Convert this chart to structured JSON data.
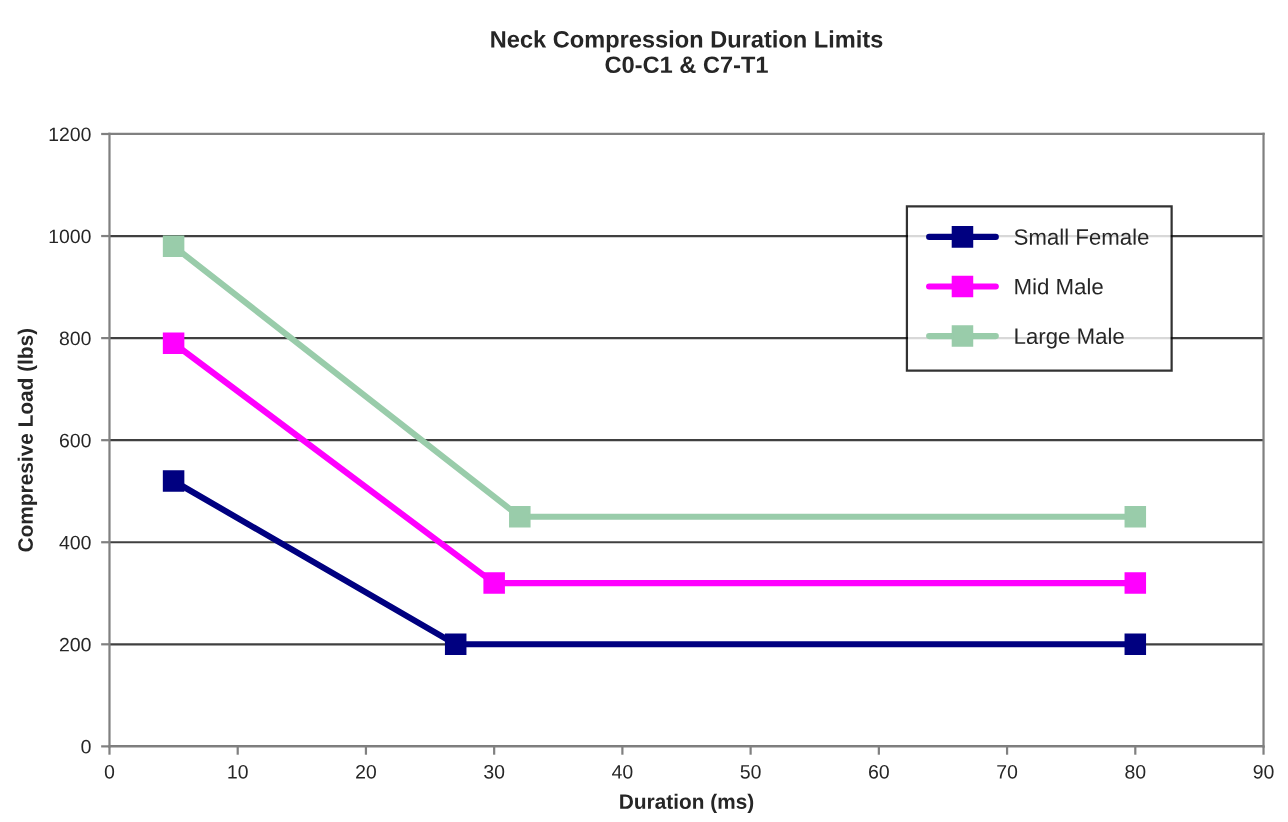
{
  "chart_data": {
    "type": "line",
    "title": "Neck Compression Duration Limits\nC0-C1 & C7-T1",
    "xlabel": "Duration (ms)",
    "ylabel": "Compresive Load (lbs)",
    "xlim": [
      0,
      90
    ],
    "xticks": [
      0,
      10,
      20,
      30,
      40,
      50,
      60,
      70,
      80,
      90
    ],
    "ylim": [
      0,
      1200
    ],
    "yticks": [
      0,
      200,
      400,
      600,
      800,
      1000,
      1200
    ],
    "grid": "y",
    "legend": "top right",
    "marker": "square",
    "line_style": "solid",
    "series": [
      {
        "name": "Small Female",
        "color": "#000080",
        "x": [
          5,
          27,
          80
        ],
        "values": [
          520,
          200,
          200
        ]
      },
      {
        "name": "Mid Male",
        "color": "#ff00ff",
        "x": [
          5,
          30,
          80
        ],
        "values": [
          790,
          320,
          320
        ]
      },
      {
        "name": "Large Male",
        "color": "#99ccaa",
        "x": [
          5,
          32,
          80
        ],
        "values": [
          980,
          450,
          450
        ]
      }
    ]
  }
}
